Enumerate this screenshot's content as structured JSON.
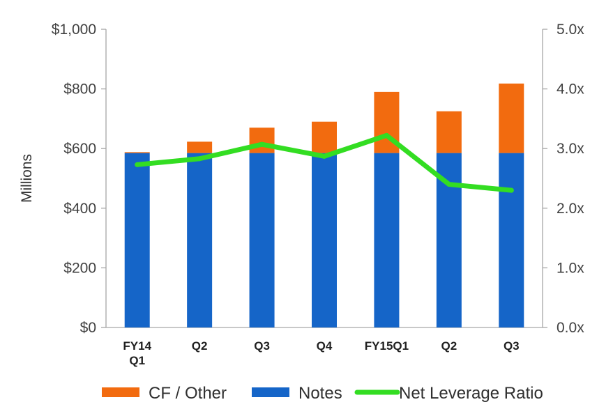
{
  "chart_data": {
    "type": "bar",
    "stacked": true,
    "categories": [
      [
        "FY14",
        "Q1"
      ],
      [
        "Q2"
      ],
      [
        "Q3"
      ],
      [
        "Q4"
      ],
      [
        "FY15Q1"
      ],
      [
        "Q2"
      ],
      [
        "Q3"
      ]
    ],
    "series": [
      {
        "name": "Notes",
        "type": "bar",
        "axis": "left",
        "color": "#1565c8",
        "values": [
          585,
          585,
          585,
          585,
          585,
          585,
          585
        ]
      },
      {
        "name": "CF / Other",
        "type": "bar",
        "axis": "left",
        "color": "#f26b0f",
        "values": [
          3,
          38,
          85,
          105,
          205,
          140,
          233
        ]
      },
      {
        "name": "Net Leverage Ratio",
        "type": "line",
        "axis": "right",
        "color": "#33dd22",
        "values": [
          2.73,
          2.83,
          3.07,
          2.87,
          3.22,
          2.4,
          2.3
        ]
      }
    ],
    "ylabel": "Millions",
    "y_left": {
      "lim": [
        0,
        1000
      ],
      "ticks": [
        "$0",
        "$200",
        "$400",
        "$600",
        "$800",
        "$1,000"
      ]
    },
    "y_right": {
      "lim": [
        0,
        5
      ],
      "ticks": [
        "0.0x",
        "1.0x",
        "2.0x",
        "3.0x",
        "4.0x",
        "5.0x"
      ]
    },
    "grid": false,
    "legend": {
      "placement": "bottom",
      "items": [
        {
          "label": "CF / Other",
          "color": "#f26b0f",
          "marker": "box"
        },
        {
          "label": "Notes",
          "color": "#1565c8",
          "marker": "box"
        },
        {
          "label": "Net Leverage Ratio",
          "color": "#33dd22",
          "marker": "line"
        }
      ]
    }
  }
}
